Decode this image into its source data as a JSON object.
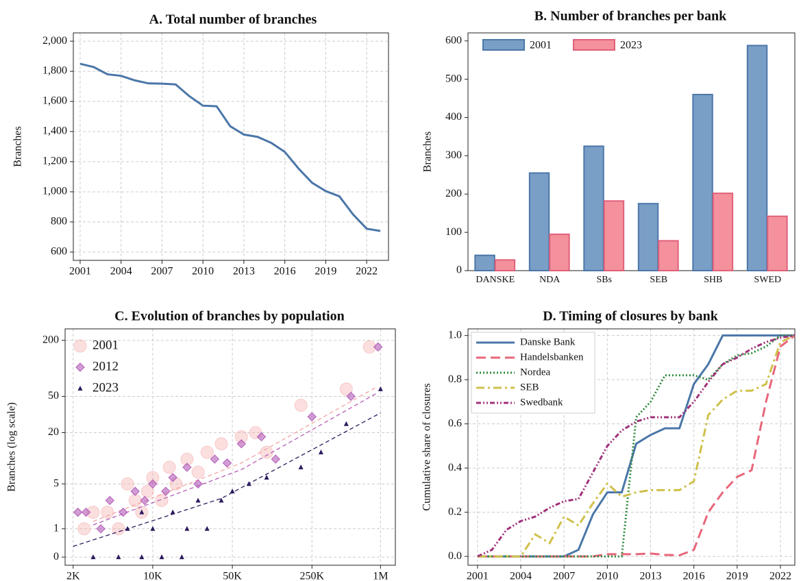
{
  "chart_data": [
    {
      "type": "line",
      "title": "A. Total number of branches",
      "ylabel": "Branches",
      "x": [
        2001,
        2002,
        2003,
        2004,
        2005,
        2006,
        2007,
        2008,
        2009,
        2010,
        2011,
        2012,
        2013,
        2014,
        2015,
        2016,
        2017,
        2018,
        2019,
        2020,
        2021,
        2022,
        2023
      ],
      "series": [
        {
          "color": "#4a76a8",
          "dash": "solid",
          "values": [
            1850,
            1828,
            1780,
            1770,
            1740,
            1720,
            1718,
            1713,
            1635,
            1572,
            1568,
            1435,
            1380,
            1365,
            1325,
            1265,
            1155,
            1060,
            1005,
            970,
            850,
            755,
            740
          ]
        }
      ],
      "xlim": [
        2000.5,
        2023.6
      ],
      "xticks": [
        2001,
        2004,
        2007,
        2010,
        2013,
        2016,
        2019,
        2022
      ],
      "ylim": [
        545,
        2055
      ],
      "yticks": [
        600,
        800,
        {
          "value": 1000,
          "label": "1,000"
        },
        {
          "value": 1200,
          "label": "1,200"
        },
        {
          "value": 1400,
          "label": "1,400"
        },
        {
          "value": 1600,
          "label": "1,600"
        },
        {
          "value": 1800,
          "label": "1,800"
        },
        {
          "value": 2000,
          "label": "2,000"
        }
      ],
      "grid": true
    },
    {
      "type": "bar",
      "title": "B. Number of branches per bank",
      "ylabel": "Branches",
      "categories": [
        "DANSKE",
        "NDA",
        "SBs",
        "SEB",
        "SHB",
        "SWED"
      ],
      "series": [
        {
          "name": "2001",
          "color": "#7a9fc7",
          "edge": "#4a76a8",
          "values": [
            40,
            255,
            325,
            175,
            460,
            588
          ]
        },
        {
          "name": "2023",
          "color": "#f4919c",
          "edge": "#e0607a",
          "values": [
            28,
            95,
            182,
            78,
            202,
            142
          ]
        }
      ],
      "ylim": [
        0,
        621
      ],
      "yticks": [
        0,
        100,
        200,
        300,
        400,
        500,
        600
      ],
      "grid": false,
      "legend": "top-left"
    },
    {
      "type": "scatter",
      "title": "C. Evolution of branches by population",
      "ylabel": "Branches (log scale)",
      "xscale": "log",
      "yscale": "log1p",
      "series": [
        {
          "name": "2001",
          "color": "#f4a3a3",
          "marker": "circle",
          "x": [
            2500,
            3000,
            4000,
            5000,
            6000,
            7000,
            8000,
            9000,
            10000,
            12000,
            14000,
            16000,
            20000,
            25000,
            30000,
            40000,
            60000,
            80000,
            100000,
            200000,
            500000,
            800000
          ],
          "values": [
            1,
            2,
            2,
            1,
            5,
            3,
            2,
            4,
            6,
            3,
            8,
            5,
            10,
            7,
            12,
            15,
            18,
            20,
            12,
            40,
            60,
            170
          ],
          "trend": {
            "x": [
              3000,
              60000,
              900000
            ],
            "values": [
              1.4,
              9,
              62
            ]
          }
        },
        {
          "name": "2012",
          "color": "#b35cb8",
          "marker": "diamond",
          "x": [
            2200,
            2600,
            3500,
            4200,
            5500,
            7000,
            8500,
            10000,
            13000,
            15000,
            20000,
            25000,
            35000,
            45000,
            60000,
            90000,
            120000,
            250000,
            550000,
            950000
          ],
          "values": [
            2,
            2,
            1,
            3,
            2,
            4,
            3,
            5,
            4,
            6,
            8,
            5,
            10,
            9,
            15,
            18,
            10,
            30,
            50,
            170
          ],
          "trend": {
            "x": [
              3000,
              60000,
              950000
            ],
            "values": [
              1.2,
              7.5,
              55
            ]
          }
        },
        {
          "name": "2023",
          "color": "#2d1b5e",
          "marker": "triangle",
          "x": [
            3000,
            5000,
            8000,
            12000,
            18000,
            6000,
            10000,
            20000,
            30000,
            8000,
            15000,
            25000,
            40000,
            50000,
            70000,
            100000,
            200000,
            300000,
            500000,
            1000000
          ],
          "values": [
            0,
            0,
            0,
            0,
            0,
            1,
            1,
            1,
            1,
            2,
            2,
            3,
            3,
            4,
            5,
            6,
            8,
            12,
            25,
            60
          ],
          "trend": {
            "x": [
              2000,
              40000,
              1000000
            ],
            "values": [
              0.3,
              3.2,
              33
            ]
          }
        }
      ],
      "xlim": [
        1700,
        1350000
      ],
      "xticks": [
        {
          "value": 2000,
          "label": "2K"
        },
        {
          "value": 10000,
          "label": "10K"
        },
        {
          "value": 50000,
          "label": "50K"
        },
        {
          "value": 250000,
          "label": "250K"
        },
        {
          "value": 1000000,
          "label": "1M"
        }
      ],
      "ylim": [
        -0.18,
        265
      ],
      "yticks": [
        0,
        1,
        5,
        20,
        50,
        200
      ],
      "grid": true,
      "legend": "top-left"
    },
    {
      "type": "line",
      "title": "D. Timing of closures by bank",
      "ylabel": "Cumulative share of closures",
      "x": [
        2001,
        2002,
        2003,
        2004,
        2005,
        2006,
        2007,
        2008,
        2009,
        2010,
        2011,
        2012,
        2013,
        2014,
        2015,
        2016,
        2017,
        2018,
        2019,
        2020,
        2021,
        2022,
        2023
      ],
      "series": [
        {
          "name": "Danske Bank",
          "color": "#4a76a8",
          "dash": "solid",
          "values": [
            0,
            0,
            0,
            0,
            0,
            0,
            0,
            0.03,
            0.19,
            0.29,
            0.29,
            0.51,
            0.55,
            0.58,
            0.58,
            0.78,
            0.87,
            1,
            1,
            1,
            1,
            1,
            1
          ]
        },
        {
          "name": "Handelsbanken",
          "color": "#e8667a",
          "dash": "long-dash",
          "values": [
            0,
            0,
            0,
            0,
            0,
            0,
            0,
            0,
            0,
            0.01,
            0.01,
            0.01,
            0.013,
            0.007,
            0.005,
            0.03,
            0.2,
            0.29,
            0.36,
            0.39,
            0.7,
            0.95,
            1
          ]
        },
        {
          "name": "Nordea",
          "color": "#2e8b3a",
          "dash": "dot",
          "values": [
            0,
            0,
            0,
            0,
            0,
            0,
            0,
            0,
            0,
            0,
            0,
            0.63,
            0.7,
            0.82,
            0.82,
            0.82,
            0.8,
            0.87,
            0.91,
            0.92,
            0.95,
            1,
            1
          ]
        },
        {
          "name": "SEB",
          "color": "#cfc04a",
          "dash": "dash-dot",
          "values": [
            0,
            0,
            0,
            0,
            0.1,
            0.06,
            0.18,
            0.14,
            0.24,
            0.33,
            0.27,
            0.29,
            0.3,
            0.3,
            0.3,
            0.34,
            0.64,
            0.71,
            0.75,
            0.75,
            0.78,
            0.97,
            1
          ]
        },
        {
          "name": "Swedbank",
          "color": "#a0307a",
          "dash": "dash-dot-dot",
          "values": [
            0,
            0.03,
            0.12,
            0.16,
            0.18,
            0.22,
            0.25,
            0.26,
            0.38,
            0.5,
            0.57,
            0.61,
            0.63,
            0.63,
            0.63,
            0.7,
            0.79,
            0.87,
            0.9,
            0.94,
            0.97,
            0.99,
            1
          ]
        }
      ],
      "xlim": [
        2000.34,
        2023.0
      ],
      "xticks": [
        2001,
        2004,
        2007,
        2010,
        2013,
        2016,
        2019,
        2022
      ],
      "ylim": [
        -0.04,
        1.03
      ],
      "yticks": [
        {
          "value": 0,
          "label": "0.0"
        },
        0.2,
        0.4,
        0.6,
        0.8,
        {
          "value": 1,
          "label": "1.0"
        }
      ],
      "grid": true,
      "legend": "top-left"
    }
  ]
}
